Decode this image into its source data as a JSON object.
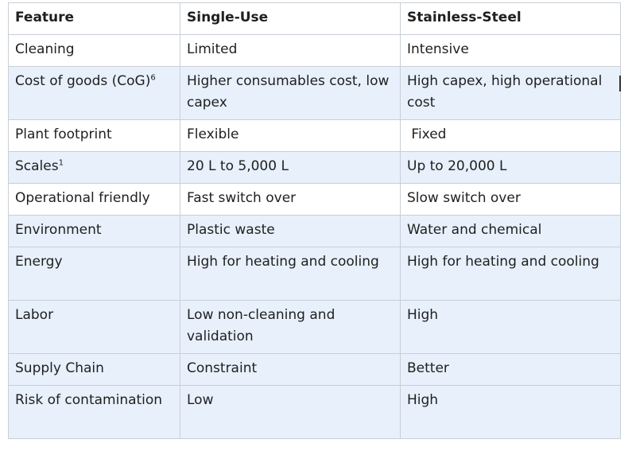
{
  "table": {
    "headers": [
      "Feature",
      "Single-Use",
      "Stainless-Steel"
    ],
    "rows": [
      {
        "feature": "Cleaning",
        "feature_sup": "",
        "single_use": "Limited",
        "stainless_steel": "Intensive"
      },
      {
        "feature": "Cost of goods (CoG)",
        "feature_sup": "6",
        "single_use": "Higher consumables cost, low capex",
        "stainless_steel": "High capex, high operational cost"
      },
      {
        "feature": "Plant footprint",
        "feature_sup": "",
        "single_use": "Flexible",
        "stainless_steel": " Fixed"
      },
      {
        "feature": "Scales",
        "feature_sup": "1",
        "single_use": "20 L to 5,000 L",
        "stainless_steel": "Up to 20,000 L"
      },
      {
        "feature": "Operational friendly",
        "feature_sup": "",
        "single_use": "Fast switch over",
        "stainless_steel": "Slow switch over"
      },
      {
        "feature": "Environment",
        "feature_sup": "",
        "single_use": "Plastic waste",
        "stainless_steel": "Water and chemical"
      },
      {
        "feature": "Energy",
        "feature_sup": "",
        "single_use": "High for heating and cooling",
        "stainless_steel": "High for heating and cooling"
      },
      {
        "feature": "Labor",
        "feature_sup": "",
        "single_use": "Low non-cleaning and validation",
        "stainless_steel": "High"
      },
      {
        "feature": "Supply Chain",
        "feature_sup": "",
        "single_use": "Constraint",
        "stainless_steel": "Better"
      },
      {
        "feature": "Risk of contamination",
        "feature_sup": "",
        "single_use": "Low",
        "stainless_steel": "High"
      }
    ]
  }
}
